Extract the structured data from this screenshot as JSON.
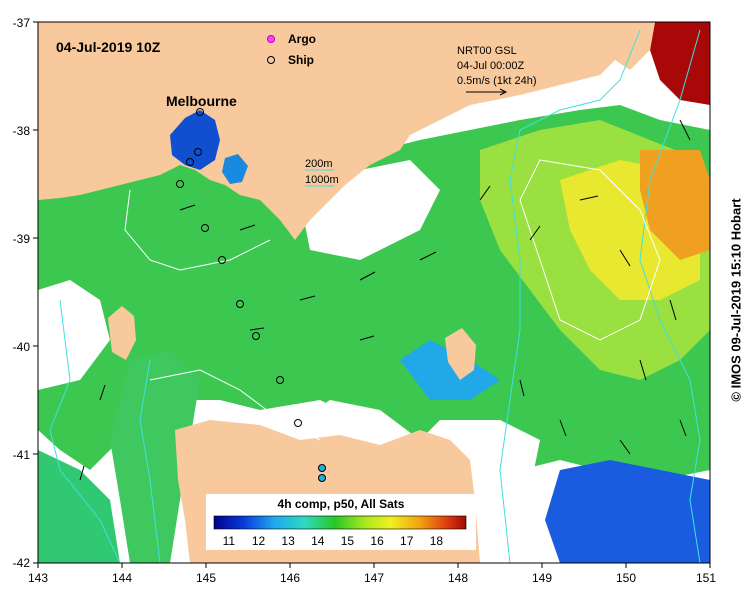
{
  "map": {
    "datetime": "04-Jul-2019 10Z",
    "city_label": "Melbourne",
    "legend": {
      "argo": "Argo",
      "ship": "Ship"
    },
    "current_scale": {
      "line1": "NRT00 GSL",
      "line2": "04-Jul 00:00Z",
      "line3": "0.5m/s (1kt 24h)"
    },
    "isobaths": {
      "shallow": "200m",
      "deep": "1000m"
    },
    "colorbar": {
      "title": "4h comp, p50, All Sats",
      "labels": [
        "11",
        "12",
        "13",
        "14",
        "15",
        "16",
        "17",
        "18"
      ],
      "range": [
        10.5,
        19.0
      ]
    },
    "x_ticks": [
      "143",
      "144",
      "145",
      "146",
      "147",
      "148",
      "149",
      "150",
      "151"
    ],
    "y_ticks": [
      "-37",
      "-38",
      "-39",
      "-40",
      "-41",
      "-42"
    ],
    "credit": "© IMOS 09-Jul-2019 15:10 Hobart",
    "colors": {
      "land": "#f8c99c",
      "cloud": "#ffffff",
      "isobath": "#40e0e0",
      "ship_track": "#000000"
    }
  }
}
